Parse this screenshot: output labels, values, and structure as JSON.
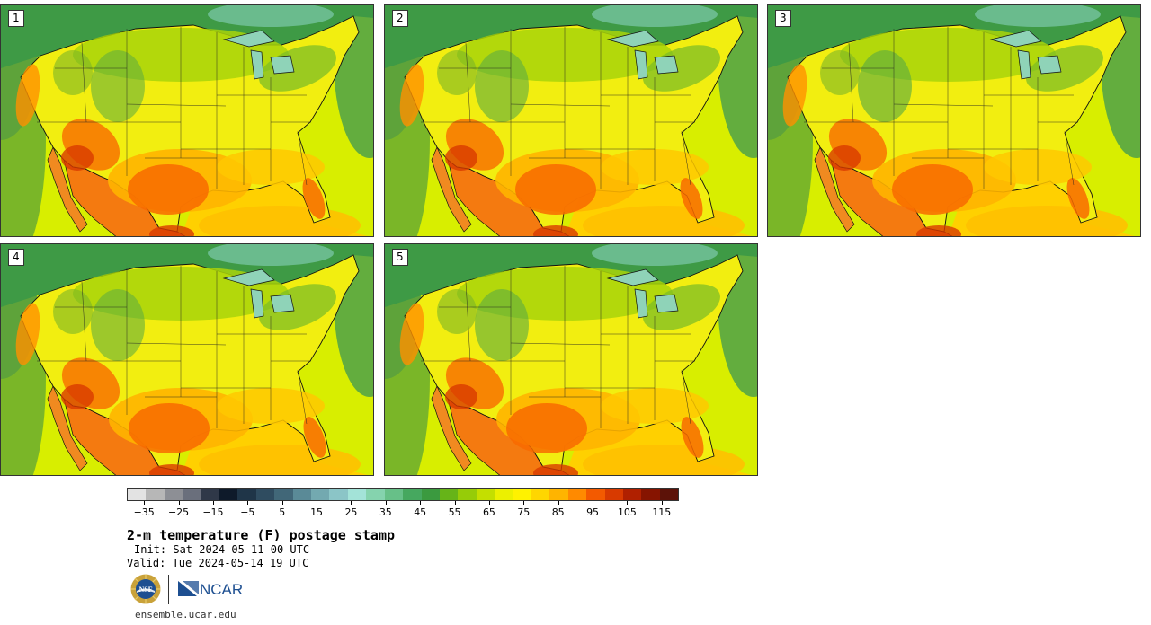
{
  "panels": [
    {
      "label": "1",
      "variant": 0
    },
    {
      "label": "2",
      "variant": 1
    },
    {
      "label": "3",
      "variant": 2
    },
    {
      "label": "4",
      "variant": 3
    },
    {
      "label": "5",
      "variant": 4
    }
  ],
  "colorbar": {
    "colors": [
      "#e3e3e3",
      "#b7b7b7",
      "#8d8f95",
      "#6a6f7c",
      "#2f3848",
      "#0e1a2a",
      "#1f3548",
      "#2f4c60",
      "#416778",
      "#5a8a97",
      "#73a9b0",
      "#8bc5c7",
      "#a3e3d8",
      "#85d3ae",
      "#67c088",
      "#46a85f",
      "#3b9a3f",
      "#66b418",
      "#96cc08",
      "#c4df00",
      "#ecf000",
      "#fff200",
      "#ffd600",
      "#ffb400",
      "#ff8a00",
      "#f35a00",
      "#d83a00",
      "#b02000",
      "#861400",
      "#5c1208"
    ],
    "tick_labels": [
      "−35",
      "−25",
      "−15",
      "−5",
      "5",
      "15",
      "25",
      "35",
      "45",
      "55",
      "65",
      "75",
      "85",
      "95",
      "105",
      "115"
    ],
    "tick_values": [
      -35,
      -25,
      -15,
      -5,
      5,
      15,
      25,
      35,
      45,
      55,
      65,
      75,
      85,
      95,
      105,
      115
    ],
    "min": -40,
    "max": 120
  },
  "title": "2-m temperature (F) postage stamp",
  "init": "Init: Sat 2024-05-11 00 UTC",
  "valid": "Valid: Tue 2024-05-14 19 UTC",
  "logos": {
    "nsf": "NSF",
    "ncar": "NCAR"
  },
  "footer_url": "ensemble.ucar.edu"
}
